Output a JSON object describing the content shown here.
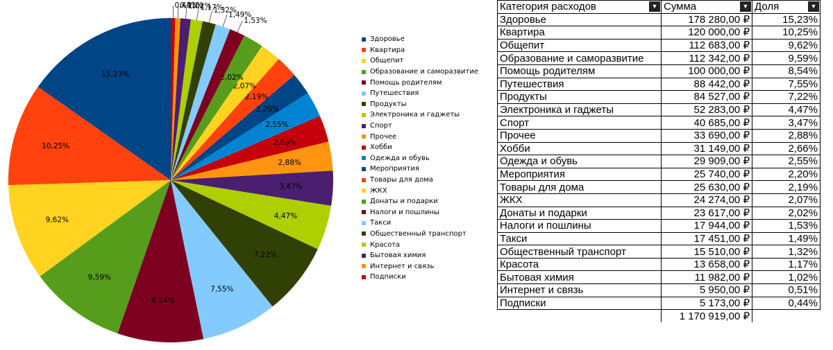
{
  "chart_data": {
    "type": "pie",
    "categories": [
      "Здоровье",
      "Квартира",
      "Общепит",
      "Образование и саморазвитие",
      "Помощь родителям",
      "Путешествия",
      "Продукты",
      "Электроника и гаджеты",
      "Спорт",
      "Прочее",
      "Хобби",
      "Одежда и обувь",
      "Мероприятия",
      "Товары для дома",
      "ЖКХ",
      "Донаты и подарки",
      "Налоги и пошлины",
      "Такси",
      "Общественный транспорт",
      "Красота",
      "Бытовая химия",
      "Интернет и связь",
      "Подписки"
    ],
    "values": [
      15.23,
      10.25,
      9.62,
      9.59,
      8.54,
      7.55,
      7.22,
      4.47,
      3.47,
      2.88,
      2.66,
      2.55,
      2.2,
      2.19,
      2.07,
      2.02,
      1.53,
      1.49,
      1.32,
      1.17,
      1.02,
      0.51,
      0.44
    ],
    "value_labels": [
      "15,23%",
      "10,25%",
      "9,62%",
      "9,59%",
      "8,54%",
      "7,55%",
      "7,22%",
      "4,47%",
      "3,47%",
      "2,88%",
      "2,66%",
      "2,55%",
      "2,20%",
      "2,19%",
      "2,07%",
      "2,02%",
      "1,53%",
      "1,49%",
      "1,32%",
      "1,17%",
      "1,02%",
      "0,51%",
      "0,44%"
    ],
    "colors": [
      "#004586",
      "#ff420e",
      "#ffd320",
      "#579d1c",
      "#7e0021",
      "#83caff",
      "#314004",
      "#aecf00",
      "#4b1f6f",
      "#ff950e",
      "#c5000b",
      "#0084d1",
      "#004586",
      "#ff420e",
      "#ffd320",
      "#579d1c",
      "#7e0021",
      "#83caff",
      "#314004",
      "#aecf00",
      "#4b1f6f",
      "#ff950e",
      "#c5000b"
    ],
    "start": "12 o'clock, counterclockwise",
    "legend_position": "right"
  },
  "table": {
    "headers": [
      "Категория расходов",
      "Сумма",
      "Доля"
    ],
    "filter_icon": "dropdown-arrow-icon",
    "rows": [
      [
        "Здоровье",
        "178 280,00 ₽",
        "15,23%"
      ],
      [
        "Квартира",
        "120 000,00 ₽",
        "10,25%"
      ],
      [
        "Общепит",
        "112 683,00 ₽",
        "9,62%"
      ],
      [
        "Образование и саморазвитие",
        "112 342,00 ₽",
        "9,59%"
      ],
      [
        "Помощь родителям",
        "100 000,00 ₽",
        "8,54%"
      ],
      [
        "Путешествия",
        "88 442,00 ₽",
        "7,55%"
      ],
      [
        "Продукты",
        "84 527,00 ₽",
        "7,22%"
      ],
      [
        "Электроника и гаджеты",
        "52 283,00 ₽",
        "4,47%"
      ],
      [
        "Спорт",
        "40 685,00 ₽",
        "3,47%"
      ],
      [
        "Прочее",
        "33 690,00 ₽",
        "2,88%"
      ],
      [
        "Хобби",
        "31 149,00 ₽",
        "2,66%"
      ],
      [
        "Одежда и обувь",
        "29 909,00 ₽",
        "2,55%"
      ],
      [
        "Мероприятия",
        "25 740,00 ₽",
        "2,20%"
      ],
      [
        "Товары для дома",
        "25 630,00 ₽",
        "2,19%"
      ],
      [
        "ЖКХ",
        "24 274,00 ₽",
        "2,07%"
      ],
      [
        "Донаты и подарки",
        "23 617,00 ₽",
        "2,02%"
      ],
      [
        "Налоги и пошлины",
        "17 944,00 ₽",
        "1,53%"
      ],
      [
        "Такси",
        "17 451,00 ₽",
        "1,49%"
      ],
      [
        "Общественный транспорт",
        "15 510,00 ₽",
        "1,32%"
      ],
      [
        "Красота",
        "13 658,00 ₽",
        "1,17%"
      ],
      [
        "Бытовая химия",
        "11 982,00 ₽",
        "1,02%"
      ],
      [
        "Интернет и связь",
        "5 950,00 ₽",
        "0,51%"
      ],
      [
        "Подписки",
        "5 173,00 ₽",
        "0,44%"
      ]
    ],
    "total": "1 170 919,00 ₽"
  }
}
